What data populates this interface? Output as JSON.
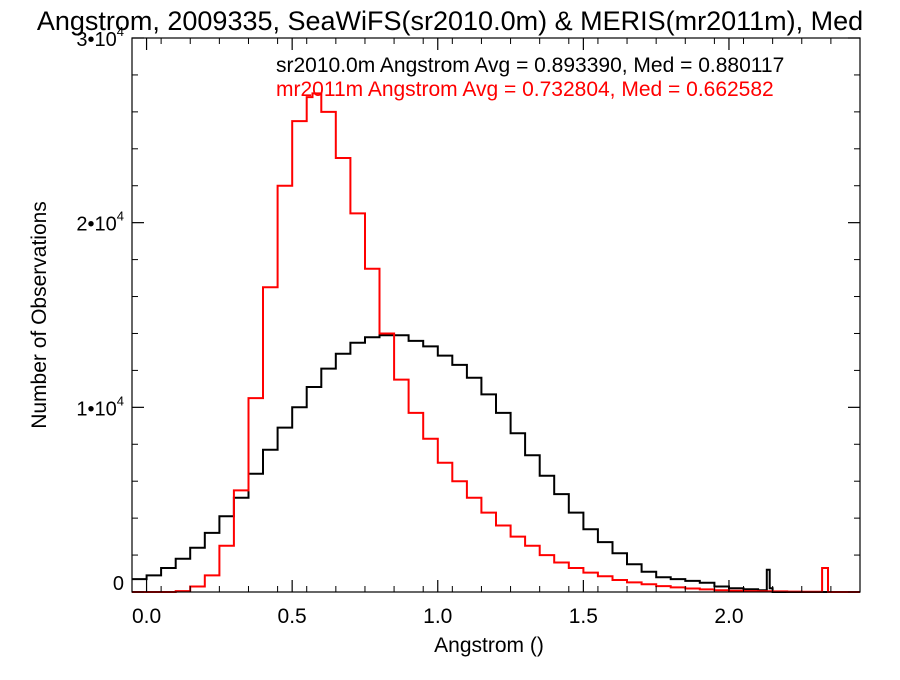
{
  "chart_data": {
    "type": "line",
    "title": "Angstrom, 2009335, SeaWiFS(sr2010.0m) & MERIS(mr2011m), Med",
    "xlabel": "Angstrom ()",
    "ylabel": "Number of Observations",
    "xlim": [
      -0.05,
      2.45
    ],
    "ylim": [
      0,
      30000
    ],
    "x_ticks": [
      "0.0",
      "0.5",
      "1.0",
      "1.5",
      "2.0"
    ],
    "y_ticks": [
      {
        "mantissa": "0",
        "exponent": ""
      },
      {
        "mantissa": "1•10",
        "exponent": "4"
      },
      {
        "mantissa": "2•10",
        "exponent": "4"
      },
      {
        "mantissa": "3•10",
        "exponent": "4"
      }
    ],
    "grid": false,
    "legend_placement": "top-right",
    "series": [
      {
        "name": "sr2010.0m",
        "label": "sr2010.0m Angstrom Avg = 0.893390, Med = 0.880117",
        "color": "#000000",
        "x": [
          -0.05,
          0.0,
          0.05,
          0.1,
          0.15,
          0.2,
          0.25,
          0.3,
          0.35,
          0.4,
          0.45,
          0.5,
          0.55,
          0.6,
          0.65,
          0.7,
          0.75,
          0.8,
          0.85,
          0.9,
          0.95,
          1.0,
          1.05,
          1.1,
          1.15,
          1.2,
          1.25,
          1.3,
          1.35,
          1.4,
          1.45,
          1.5,
          1.55,
          1.6,
          1.65,
          1.7,
          1.75,
          1.8,
          1.85,
          1.9,
          1.95,
          2.0,
          2.05,
          2.1,
          2.13,
          2.14,
          2.15,
          2.2,
          2.25,
          2.3,
          2.35,
          2.4,
          2.45
        ],
        "y": [
          700,
          900,
          1300,
          1800,
          2400,
          3200,
          4100,
          5100,
          6400,
          7700,
          8900,
          10000,
          11100,
          12100,
          12900,
          13500,
          13800,
          13900,
          13900,
          13600,
          13300,
          12800,
          12300,
          11600,
          10700,
          9700,
          8600,
          7400,
          6300,
          5300,
          4300,
          3400,
          2700,
          2100,
          1500,
          1100,
          800,
          700,
          600,
          500,
          300,
          200,
          150,
          100,
          1200,
          200,
          0,
          0,
          0,
          0,
          0,
          0,
          0
        ]
      },
      {
        "name": "mr2011m",
        "label": "mr2011m Angstrom Avg = 0.732804, Med = 0.662582",
        "color": "#ff0000",
        "x": [
          -0.05,
          0.0,
          0.05,
          0.1,
          0.15,
          0.2,
          0.25,
          0.3,
          0.35,
          0.4,
          0.45,
          0.5,
          0.55,
          0.57,
          0.6,
          0.65,
          0.7,
          0.75,
          0.8,
          0.85,
          0.9,
          0.95,
          1.0,
          1.05,
          1.1,
          1.15,
          1.2,
          1.25,
          1.3,
          1.35,
          1.4,
          1.45,
          1.5,
          1.55,
          1.6,
          1.65,
          1.7,
          1.75,
          1.8,
          1.85,
          1.9,
          1.95,
          2.0,
          2.05,
          2.1,
          2.15,
          2.2,
          2.25,
          2.3,
          2.32,
          2.34,
          2.4,
          2.45
        ],
        "y": [
          0,
          0,
          0,
          50,
          300,
          900,
          2500,
          5500,
          10500,
          16500,
          22000,
          25500,
          26800,
          27000,
          26000,
          23500,
          20500,
          17500,
          14000,
          11500,
          9700,
          8300,
          7000,
          6000,
          5100,
          4300,
          3600,
          3000,
          2500,
          2000,
          1600,
          1300,
          1050,
          850,
          650,
          520,
          420,
          320,
          250,
          190,
          140,
          100,
          70,
          50,
          40,
          30,
          20,
          10,
          10,
          1300,
          0,
          0,
          0
        ]
      }
    ]
  }
}
